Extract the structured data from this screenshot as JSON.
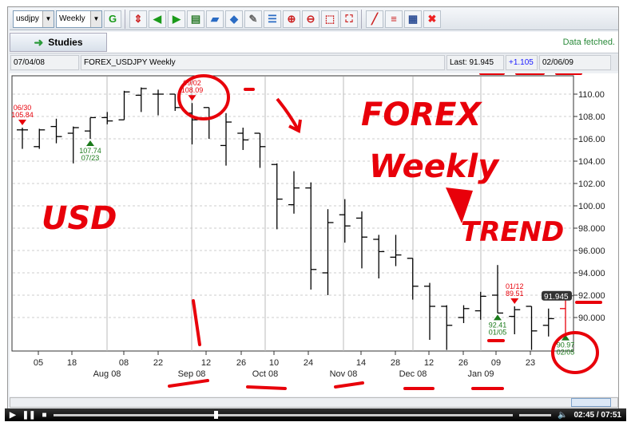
{
  "toolbar": {
    "symbol": "usdjpy",
    "period": "Weekly",
    "icons": [
      "go-icon",
      "up-down-icon",
      "back-icon",
      "forward-icon",
      "chart-icon",
      "open-icon",
      "save-icon",
      "print-icon",
      "list-icon",
      "zoom-in-icon",
      "zoom-out-icon",
      "zoom-box-icon",
      "fit-icon",
      "draw-line-icon",
      "lines-icon",
      "grid-icon",
      "close-icon"
    ]
  },
  "studies": {
    "label": "Studies",
    "status": "Data fetched."
  },
  "info": {
    "start_date": "07/04/08",
    "title": "FOREX_USDJPY Weekly",
    "last": "Last: 91.945",
    "change": "+1.105",
    "end_date": "02/06/09",
    "change_color": "#1a1aff"
  },
  "chart_data": {
    "type": "ohlc",
    "ylim": [
      86.5,
      111.5
    ],
    "y_ticks": [
      "110.00",
      "108.00",
      "106.00",
      "104.00",
      "102.00",
      "100.00",
      "98.000",
      "96.000",
      "94.000",
      "92.000",
      "90.000"
    ],
    "x_tick_labels": [
      "05",
      "18",
      "08",
      "22",
      "12",
      "26",
      "10",
      "24",
      "14",
      "28",
      "12",
      "26",
      "09",
      "23"
    ],
    "month_labels": [
      "Aug 08",
      "Sep 08",
      "Oct 08",
      "Nov 08",
      "Dec 08",
      "Jan 09"
    ],
    "last_price": "91.945",
    "bars": [
      {
        "date": "06/23/08",
        "o": 106.8,
        "h": 107.0,
        "l": 105.1,
        "c": 106.8
      },
      {
        "date": "06/30/08",
        "o": 105.3,
        "h": 106.9,
        "l": 105.1,
        "c": 106.8
      },
      {
        "date": "07/07/08",
        "o": 107.1,
        "h": 107.8,
        "l": 105.6,
        "c": 106.2
      },
      {
        "date": "07/14/08",
        "o": 106.5,
        "h": 107.1,
        "l": 103.8,
        "c": 107.0
      },
      {
        "date": "07/21/08",
        "o": 106.7,
        "h": 107.9,
        "l": 106.0,
        "c": 107.9
      },
      {
        "date": "07/28/08",
        "o": 107.9,
        "h": 108.4,
        "l": 107.3,
        "c": 107.6
      },
      {
        "date": "08/04/08",
        "o": 107.7,
        "h": 110.3,
        "l": 107.7,
        "c": 110.2
      },
      {
        "date": "08/11/08",
        "o": 109.9,
        "h": 110.6,
        "l": 108.4,
        "c": 110.5
      },
      {
        "date": "08/18/08",
        "o": 110.0,
        "h": 110.4,
        "l": 108.1,
        "c": 110.0
      },
      {
        "date": "08/25/08",
        "o": 110.0,
        "h": 110.0,
        "l": 108.5,
        "c": 108.8
      },
      {
        "date": "09/01/08",
        "o": 108.3,
        "h": 109.2,
        "l": 105.5,
        "c": 107.7
      },
      {
        "date": "09/08/08",
        "o": 108.8,
        "h": 108.8,
        "l": 106.0,
        "c": 107.9
      },
      {
        "date": "09/15/08",
        "o": 105.4,
        "h": 108.3,
        "l": 103.6,
        "c": 107.5
      },
      {
        "date": "09/22/08",
        "o": 106.5,
        "h": 107.0,
        "l": 105.0,
        "c": 105.9
      },
      {
        "date": "09/29/08",
        "o": 106.5,
        "h": 106.5,
        "l": 103.4,
        "c": 105.3
      },
      {
        "date": "10/06/08",
        "o": 103.7,
        "h": 103.8,
        "l": 97.9,
        "c": 100.6
      },
      {
        "date": "10/13/08",
        "o": 100.1,
        "h": 103.1,
        "l": 99.3,
        "c": 101.6
      },
      {
        "date": "10/20/08",
        "o": 101.6,
        "h": 102.1,
        "l": 92.5,
        "c": 94.3
      },
      {
        "date": "10/27/08",
        "o": 94.0,
        "h": 99.7,
        "l": 92.0,
        "c": 98.5
      },
      {
        "date": "11/03/08",
        "o": 99.2,
        "h": 100.6,
        "l": 96.7,
        "c": 98.2
      },
      {
        "date": "11/10/08",
        "o": 98.9,
        "h": 99.5,
        "l": 94.4,
        "c": 97.2
      },
      {
        "date": "11/17/08",
        "o": 97.0,
        "h": 97.4,
        "l": 93.5,
        "c": 95.9
      },
      {
        "date": "11/24/08",
        "o": 95.4,
        "h": 97.4,
        "l": 94.6,
        "c": 95.6
      },
      {
        "date": "12/01/08",
        "o": 95.3,
        "h": 95.3,
        "l": 91.6,
        "c": 92.8
      },
      {
        "date": "12/08/08",
        "o": 92.8,
        "h": 93.1,
        "l": 88.0,
        "c": 91.0
      },
      {
        "date": "12/15/08",
        "o": 91.0,
        "h": 91.1,
        "l": 87.1,
        "c": 89.3
      },
      {
        "date": "12/22/08",
        "o": 90.0,
        "h": 91.1,
        "l": 89.5,
        "c": 90.8
      },
      {
        "date": "12/29/08",
        "o": 90.6,
        "h": 92.3,
        "l": 89.8,
        "c": 91.9
      },
      {
        "date": "01/05/09",
        "o": 92.0,
        "h": 94.7,
        "l": 90.4,
        "c": 90.4
      },
      {
        "date": "01/12/09",
        "o": 90.1,
        "h": 91.0,
        "l": 88.5,
        "c": 90.7
      },
      {
        "date": "01/19/09",
        "o": 91.0,
        "h": 91.0,
        "l": 87.1,
        "c": 88.8
      },
      {
        "date": "01/26/09",
        "o": 89.3,
        "h": 90.8,
        "l": 88.3,
        "c": 89.9
      },
      {
        "date": "02/02/09",
        "o": 90.8,
        "h": 92.3,
        "l": 88.6,
        "c": 91.945
      }
    ],
    "markers": [
      {
        "bar": 0,
        "type": "high",
        "date": "06/30",
        "value": "105.84"
      },
      {
        "bar": 4,
        "type": "low",
        "date": "07/23",
        "value": "107.74"
      },
      {
        "bar": 10,
        "type": "high",
        "date": "09/02",
        "value": "108.09"
      },
      {
        "bar": 28,
        "type": "low",
        "date": "01/05",
        "value": "92.41"
      },
      {
        "bar": 29,
        "type": "high",
        "date": "01/12",
        "value": "89.51"
      },
      {
        "bar": 32,
        "type": "low",
        "date": "02/05",
        "value": "90.97"
      }
    ],
    "colors": {
      "bars": "#000000",
      "last_bar": "#e8000a",
      "high_marker": "#e8000a",
      "low_marker": "#1a7a1a"
    }
  },
  "annotations": {
    "usd": "USD",
    "forex": "FOREX",
    "weekly": "Weekly",
    "trend": "TREND",
    "color": "#e8000a"
  },
  "video": {
    "time": "02:45 / 07:51",
    "progress": 0.35
  }
}
